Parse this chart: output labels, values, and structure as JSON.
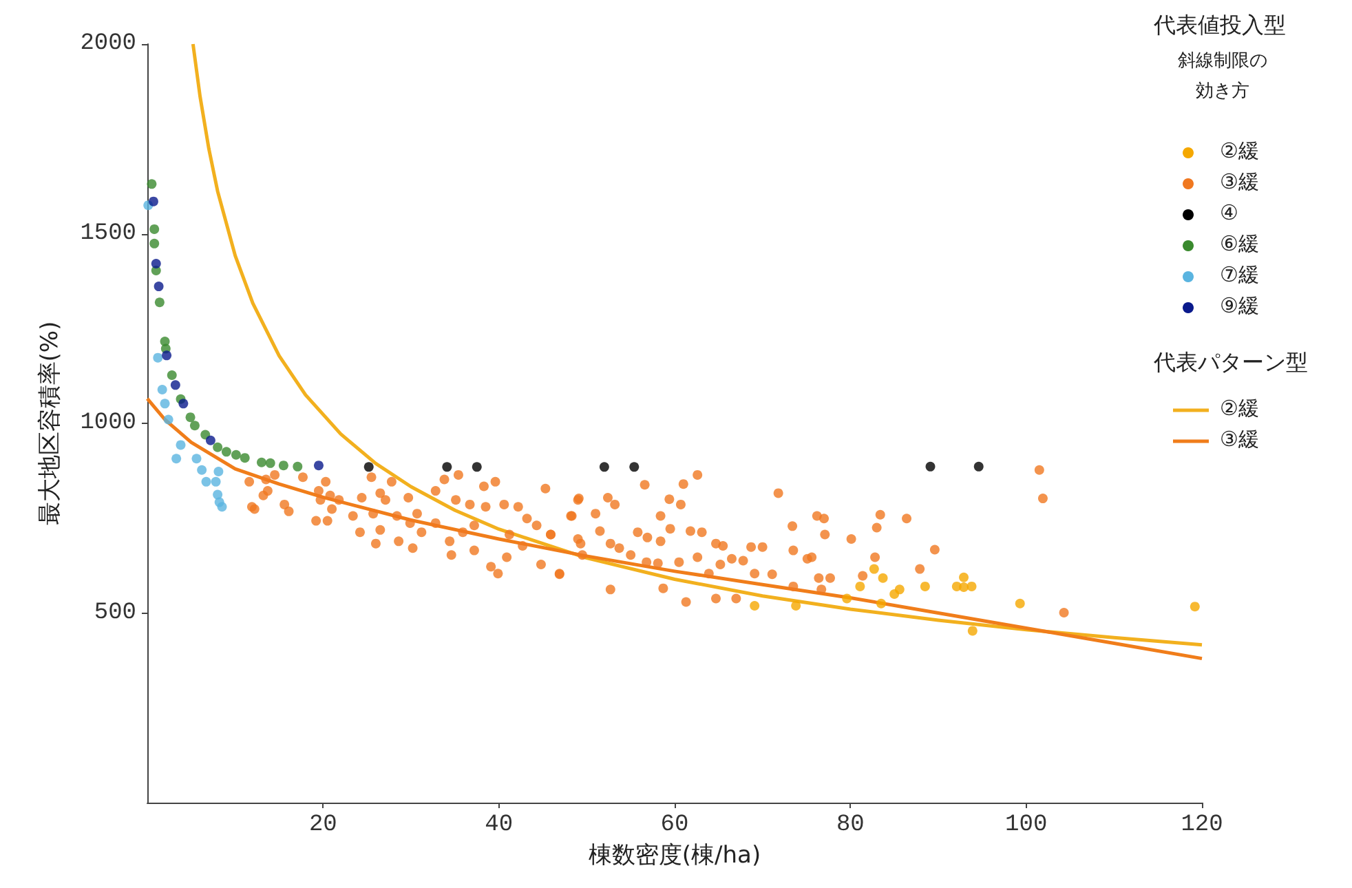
{
  "chart_data": {
    "type": "scatter",
    "xlabel": "棟数密度(棟/ha)",
    "ylabel": "最大地区容積率(%)",
    "legend_title": "代表値投入型",
    "annotations": [
      "斜線制限の",
      "効き方",
      "代表パターン型"
    ],
    "xlim": [
      0,
      120
    ],
    "xticks": [
      20,
      40,
      60,
      80,
      100,
      120
    ],
    "ylim": [
      0,
      2000
    ],
    "yticks": [
      500,
      1000,
      1500,
      2000
    ],
    "grid": false,
    "legend": "right",
    "marker": "circle",
    "series": [
      {
        "name": "②緩",
        "color": "#f5a800",
        "x": [
          69.1,
          73.8,
          79.6,
          81.1,
          83.7,
          84.8,
          85.6,
          82.7,
          83.5,
          85.0,
          88.5,
          92.9,
          92.1,
          92.9,
          93.8,
          99.3,
          119.2,
          93.9
        ],
        "values": [
          519,
          519,
          538,
          570,
          592,
          null,
          562,
          616,
          525,
          550,
          570,
          594,
          570,
          568,
          570,
          525,
          517,
          453
        ]
      },
      {
        "name": "③緩",
        "color": "#f07820",
        "x": [
          11.6,
          13.5,
          13.7,
          13.2,
          14.5,
          12.2,
          15.6,
          16.1,
          17.7,
          19.5,
          20.3,
          19.7,
          20.8,
          21.0,
          19.2,
          20.5,
          21.8,
          23.4,
          24.4,
          24.2,
          25.5,
          26.5,
          27.1,
          25.7,
          26.5,
          26.0,
          27.8,
          28.4,
          28.6,
          29.7,
          29.9,
          30.2,
          30.7,
          31.2,
          32.8,
          32.8,
          33.8,
          34.4,
          34.6,
          35.1,
          35.4,
          35.9,
          36.7,
          37.2,
          37.2,
          38.3,
          38.5,
          39.1,
          39.9,
          39.6,
          40.6,
          40.9,
          41.2,
          42.2,
          42.7,
          43.2,
          44.3,
          44.8,
          45.9,
          46.9,
          48.2,
          49.0,
          49.3,
          49.5,
          45.3,
          62.6,
          56.6,
          61.0,
          49.1,
          52.4,
          53.2,
          59.4,
          60.7,
          48.3,
          51.0,
          58.4,
          71.8,
          76.2,
          77.0,
          83.4,
          86.4,
          45.9,
          49.0,
          51.5,
          52.7,
          53.7,
          55.8,
          56.9,
          59.5,
          61.8,
          63.1,
          58.4,
          64.7,
          65.5,
          68.7,
          70.0,
          73.4,
          73.5,
          75.6,
          77.1,
          80.1,
          83.0,
          82.8,
          46.9,
          52.7,
          58.7,
          61.3,
          64.7,
          67.0,
          73.5,
          76.4,
          76.7,
          81.4,
          55.0,
          56.8,
          58.1,
          60.5,
          62.6,
          63.9,
          65.2,
          66.5,
          67.8,
          69.1,
          71.1,
          75.1,
          77.7,
          101.5,
          101.9,
          89.6,
          87.9,
          104.3,
          11.9
        ],
        "values": [
          846,
          852,
          822,
          810,
          864,
          774,
          786,
          768,
          858,
          822,
          846,
          798,
          810,
          774,
          743,
          743,
          798,
          756,
          804,
          713,
          858,
          816,
          798,
          762,
          719,
          683,
          846,
          756,
          689,
          804,
          737,
          671,
          762,
          713,
          822,
          737,
          852,
          689,
          653,
          798,
          864,
          713,
          786,
          731,
          665,
          834,
          780,
          622,
          604,
          846,
          786,
          647,
          707,
          780,
          677,
          749,
          731,
          628,
          707,
          604,
          756,
          798,
          683,
          653,
          828,
          864,
          838,
          840,
          802,
          804,
          786,
          800,
          786,
          756,
          762,
          756,
          816,
          756,
          749,
          759,
          749,
          707,
          695,
          716,
          683,
          671,
          713,
          699,
          722,
          716,
          713,
          689,
          683,
          677,
          674,
          674,
          729,
          665,
          647,
          707,
          695,
          725,
          647,
          602,
          562,
          565,
          529,
          538,
          538,
          570,
          592,
          562,
          598,
          653,
          634,
          631,
          634,
          647,
          604,
          628,
          643,
          638,
          604,
          602,
          643,
          592,
          877,
          802,
          667,
          616,
          501,
          780
        ]
      },
      {
        "name": "④",
        "color": "#000000",
        "x": [
          25.2,
          34.1,
          37.5,
          52.0,
          55.4,
          89.1,
          94.6
        ],
        "values": [
          885,
          885,
          885,
          885,
          885,
          886,
          886
        ]
      },
      {
        "name": "⑥緩",
        "color": "#3a8a2e",
        "x": [
          0.5,
          0.8,
          0.8,
          1.0,
          1.4,
          2.0,
          2.1,
          2.8,
          3.0,
          3.8,
          4.9,
          5.4,
          6.6,
          8.0,
          9.0,
          10.1,
          11.1,
          13.0,
          14.0,
          15.5,
          17.1
        ],
        "values": [
          1631,
          1512,
          1474,
          1403,
          1319,
          1216,
          1197,
          1127,
          null,
          1064,
          1016,
          994,
          970,
          937,
          925,
          917,
          909,
          897,
          895,
          889,
          886
        ]
      },
      {
        "name": "⑦緩",
        "color": "#5ab4e0",
        "x": [
          0.1,
          1.2,
          1.7,
          2.0,
          2.4,
          3.8,
          3.3,
          5.6,
          6.2,
          6.7,
          8.1,
          7.8,
          8.0,
          8.2,
          8.5
        ],
        "values": [
          1575,
          1173,
          1089,
          1052,
          1010,
          943,
          907,
          907,
          877,
          846,
          873,
          846,
          812,
          792,
          780
        ]
      },
      {
        "name": "⑨緩",
        "color": "#0a1a8c",
        "x": [
          0.7,
          1.0,
          1.3,
          2.2,
          3.2,
          4.1,
          7.2,
          19.5
        ],
        "values": [
          1585,
          1421,
          1361,
          1179,
          1101,
          1052,
          955,
          889
        ]
      },
      {
        "name": "②緩",
        "type": "line",
        "color": "#f2b01e",
        "marker": "none",
        "x": [
          5.2,
          6,
          7,
          8,
          10,
          12,
          15,
          18,
          22,
          26,
          30,
          35,
          40,
          50,
          60,
          70,
          80,
          90,
          100,
          110,
          120
        ],
        "values": [
          2000,
          1862,
          1724,
          1612,
          1442,
          1317,
          1178,
          1075,
          972,
          894,
          833,
          771,
          721,
          645,
          589,
          545,
          510,
          481,
          456,
          435,
          416
        ]
      },
      {
        "name": "③緩",
        "type": "line",
        "color": "#f07d1a",
        "marker": "none",
        "x": [
          0,
          2,
          5,
          10,
          15,
          20,
          30,
          40,
          50,
          60,
          70,
          80,
          90,
          100,
          110,
          120
        ],
        "values": [
          1065,
          1010,
          950,
          880,
          840,
          805,
          745,
          695,
          650,
          610,
          575,
          540,
          500,
          460,
          420,
          380
        ]
      }
    ]
  }
}
